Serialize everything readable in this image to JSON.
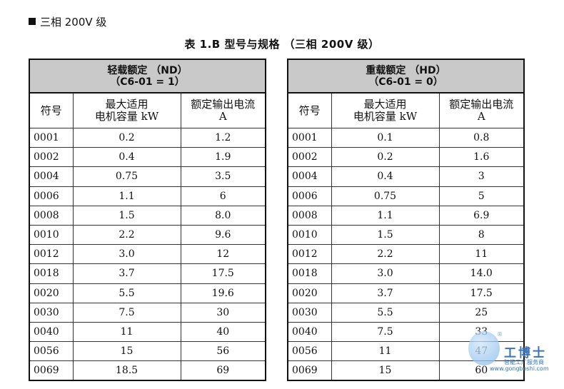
{
  "section_heading": "三相 200V 级",
  "table_caption": "表 1.B  型号与规格 （三相 200V 级）",
  "nd": {
    "title": "轻载额定 （ND）",
    "param": "（C6-01 = 1）",
    "col_code": "符号",
    "col_motor_1": "最大适用",
    "col_motor_2": "电机容量 kW",
    "col_current_1": "额定输出电流",
    "col_current_2": "A",
    "rows": [
      [
        "0001",
        "0.2",
        "1.2"
      ],
      [
        "0002",
        "0.4",
        "1.9"
      ],
      [
        "0004",
        "0.75",
        "3.5"
      ],
      [
        "0006",
        "1.1",
        "6"
      ],
      [
        "0008",
        "1.5",
        "8.0"
      ],
      [
        "0010",
        "2.2",
        "9.6"
      ],
      [
        "0012",
        "3.0",
        "12"
      ],
      [
        "0018",
        "3.7",
        "17.5"
      ],
      [
        "0020",
        "5.5",
        "19.6"
      ],
      [
        "0030",
        "7.5",
        "30"
      ],
      [
        "0040",
        "11",
        "40"
      ],
      [
        "0056",
        "15",
        "56"
      ],
      [
        "0069",
        "18.5",
        "69"
      ]
    ]
  },
  "hd": {
    "title": "重载额定 （HD）",
    "param": "（C6-01 = 0）",
    "col_code": "符号",
    "col_motor_1": "最大适用",
    "col_motor_2": "电机容量 kW",
    "col_current_1": "额定输出电流",
    "col_current_2": "A",
    "rows": [
      [
        "0001",
        "0.1",
        "0.8"
      ],
      [
        "0002",
        "0.2",
        "1.6"
      ],
      [
        "0004",
        "0.4",
        "3"
      ],
      [
        "0006",
        "0.75",
        "5"
      ],
      [
        "0008",
        "1.1",
        "6.9"
      ],
      [
        "0010",
        "1.5",
        "8"
      ],
      [
        "0012",
        "2.2",
        "11"
      ],
      [
        "0018",
        "3.0",
        "14.0"
      ],
      [
        "0020",
        "3.7",
        "17.5"
      ],
      [
        "0030",
        "5.5",
        "25"
      ],
      [
        "0040",
        "7.5",
        "33"
      ],
      [
        "0056",
        "11",
        "47"
      ],
      [
        "0069",
        "15",
        "60"
      ]
    ]
  },
  "watermark": {
    "name": "工博士",
    "slogan": "智能工厂服务商",
    "url": "www.gongboshi.com",
    "reg": "®"
  }
}
